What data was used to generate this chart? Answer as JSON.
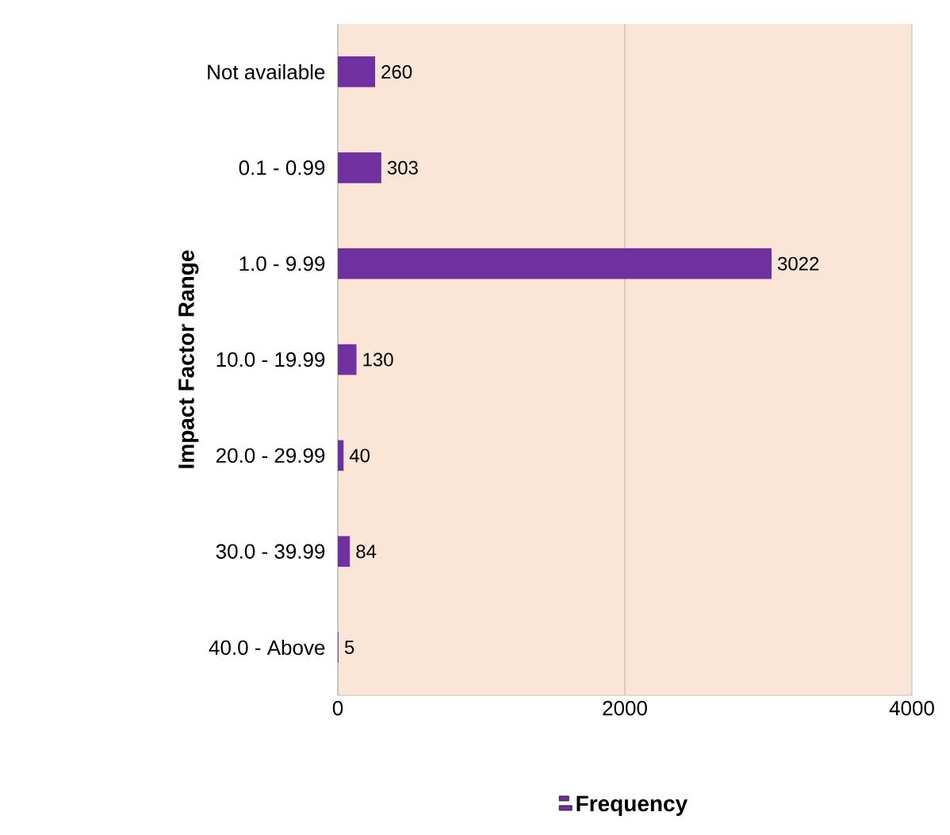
{
  "chart_data": {
    "type": "bar",
    "orientation": "horizontal",
    "ylabel": "Impact Factor Range",
    "categories": [
      "Not available",
      "0.1 - 0.99",
      "1.0 - 9.99",
      "10.0 - 19.99",
      "20.0 - 29.99",
      "30.0 - 39.99",
      "40.0 - Above"
    ],
    "series": [
      {
        "name": "Frequency",
        "color": "#7030a0",
        "values": [
          260,
          303,
          3022,
          130,
          40,
          84,
          5
        ]
      }
    ],
    "xlim": [
      0,
      4000
    ],
    "xticks": [
      0,
      2000,
      4000
    ],
    "grid": "x",
    "legend": "bottom",
    "data_labels": true
  }
}
